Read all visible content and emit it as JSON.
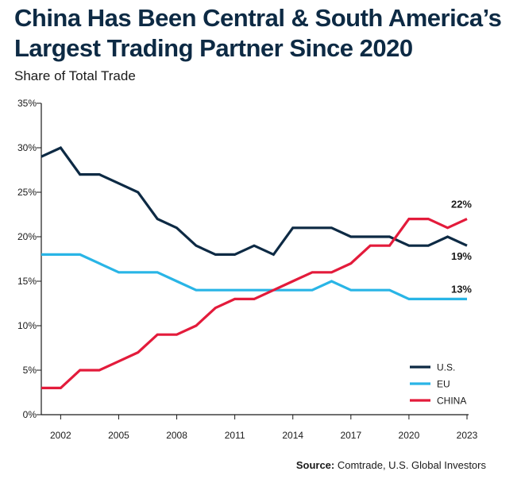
{
  "title_line1": "China Has Been Central & South America’s",
  "title_line2": "Largest Trading Partner Since 2020",
  "source_label": "Source:",
  "source_text": "Comtrade, U.S. Global Investors",
  "colors": {
    "us": "#0d2a44",
    "eu": "#29b5e6",
    "china": "#e31b3b",
    "axis": "#1a1a1a"
  },
  "chart_data": {
    "type": "line",
    "title": "China Has Been Central & South America’s Largest Trading Partner Since 2020",
    "subtitle": "Share of Total Trade",
    "xlabel": "",
    "ylabel": "",
    "x": [
      2001,
      2002,
      2003,
      2004,
      2005,
      2006,
      2007,
      2008,
      2009,
      2010,
      2011,
      2012,
      2013,
      2014,
      2015,
      2016,
      2017,
      2018,
      2019,
      2020,
      2021,
      2022,
      2023
    ],
    "xlim": [
      2001,
      2023
    ],
    "ylim": [
      0,
      35
    ],
    "x_ticks": [
      "2002",
      "2005",
      "2008",
      "2011",
      "2014",
      "2017",
      "2020",
      "2023"
    ],
    "x_tick_values": [
      2002,
      2005,
      2008,
      2011,
      2014,
      2017,
      2020,
      2023
    ],
    "y_ticks": [
      "0%",
      "5%",
      "10%",
      "15%",
      "20%",
      "25%",
      "30%",
      "35%"
    ],
    "y_tick_values": [
      0,
      5,
      10,
      15,
      20,
      25,
      30,
      35
    ],
    "grid": false,
    "legend_position": "bottom-right",
    "series": [
      {
        "key": "us",
        "name": "U.S.",
        "values": [
          29,
          30,
          27,
          27,
          26,
          25,
          22,
          21,
          19,
          18,
          18,
          19,
          18,
          21,
          21,
          21,
          20,
          20,
          20,
          19,
          19,
          20,
          19
        ]
      },
      {
        "key": "eu",
        "name": "EU",
        "values": [
          18,
          18,
          18,
          17,
          16,
          16,
          16,
          15,
          14,
          14,
          14,
          14,
          14,
          14,
          14,
          15,
          14,
          14,
          14,
          13,
          13,
          13,
          13
        ]
      },
      {
        "key": "china",
        "name": "CHINA",
        "values": [
          3,
          3,
          5,
          5,
          6,
          7,
          9,
          9,
          10,
          12,
          13,
          13,
          14,
          15,
          16,
          16,
          17,
          19,
          19,
          22,
          22,
          21,
          22
        ]
      }
    ],
    "annotations": [
      {
        "series": "china",
        "text": "22%"
      },
      {
        "series": "us",
        "text": "19%"
      },
      {
        "series": "eu",
        "text": "13%"
      }
    ]
  }
}
